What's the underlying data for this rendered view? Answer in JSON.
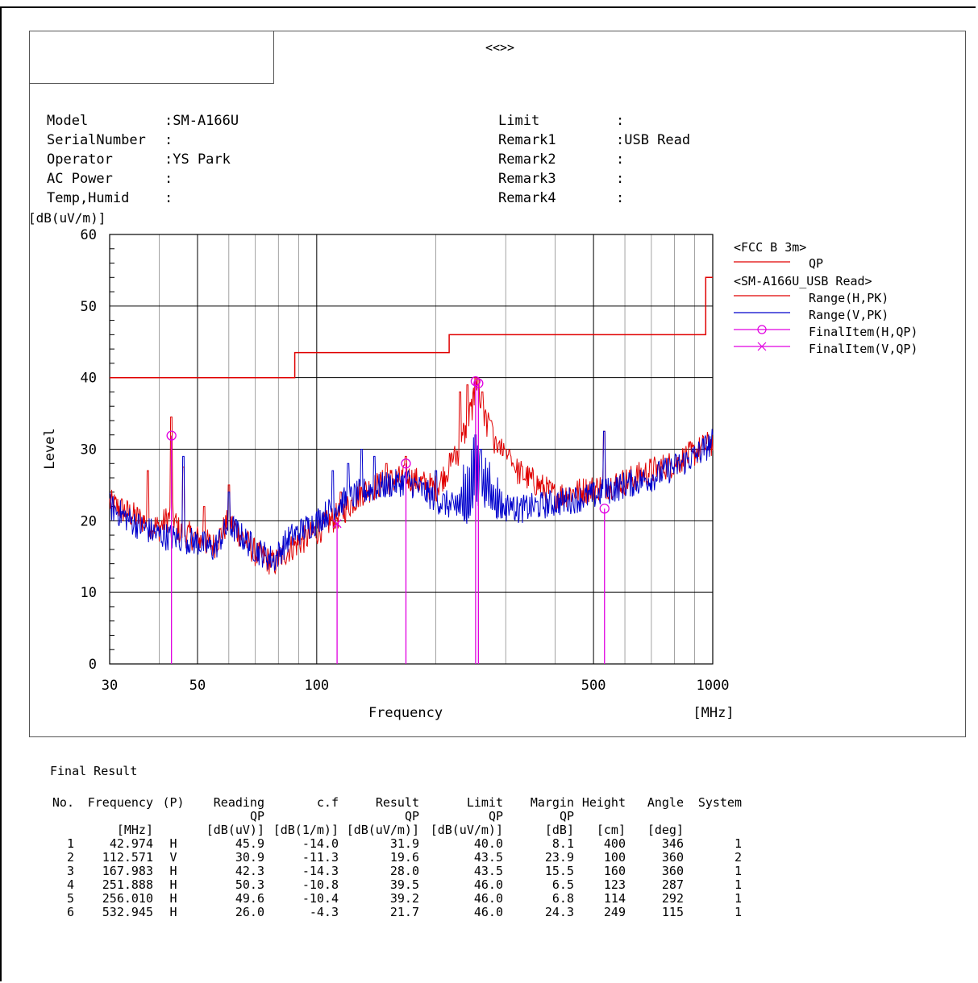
{
  "header": {
    "title": "<<>>",
    "left": [
      {
        "label": "Model",
        "value": ":SM-A166U"
      },
      {
        "label": "SerialNumber",
        "value": ":"
      },
      {
        "label": "Operator",
        "value": ":YS Park"
      },
      {
        "label": "AC Power",
        "value": ":"
      },
      {
        "label": "Temp,Humid",
        "value": ":"
      }
    ],
    "right": [
      {
        "label": "Limit",
        "value": ":"
      },
      {
        "label": "Remark1",
        "value": ":USB Read"
      },
      {
        "label": "Remark2",
        "value": ":"
      },
      {
        "label": "Remark3",
        "value": ":"
      },
      {
        "label": "Remark4",
        "value": ":"
      }
    ]
  },
  "chart_data": {
    "type": "line",
    "xscale": "log",
    "xlim": [
      30,
      1000
    ],
    "ylim": [
      0,
      60
    ],
    "grid": true,
    "xlabel": "Frequency",
    "xunit": "[MHz]",
    "ylabel": "Level",
    "yunit": "[dB(uV/m)]",
    "xticks": [
      30,
      50,
      100,
      500,
      1000
    ],
    "yticks": [
      0,
      10,
      20,
      30,
      40,
      50,
      60
    ],
    "legend": {
      "placement": "right",
      "groups": [
        {
          "title": "<FCC B 3m>",
          "entries": [
            {
              "label": "QP",
              "color": "#e00000",
              "marker": "line"
            }
          ]
        },
        {
          "title": "<SM-A166U_USB Read>",
          "entries": [
            {
              "label": "Range(H,PK)",
              "color": "#e00000",
              "marker": "line"
            },
            {
              "label": "Range(V,PK)",
              "color": "#0000cc",
              "marker": "line"
            },
            {
              "label": "FinalItem(H,QP)",
              "color": "#e000e0",
              "marker": "circle"
            },
            {
              "label": "FinalItem(V,QP)",
              "color": "#e000e0",
              "marker": "cross"
            }
          ]
        }
      ]
    },
    "limit_qp": [
      [
        30,
        40.0
      ],
      [
        88,
        40.0
      ],
      [
        88,
        43.5
      ],
      [
        216,
        43.5
      ],
      [
        216,
        46.0
      ],
      [
        960,
        46.0
      ],
      [
        960,
        54.0
      ],
      [
        1000,
        54.0
      ]
    ],
    "series": [
      {
        "name": "Range(H,PK)",
        "color": "#e00000",
        "envelope": [
          [
            30,
            22.5
          ],
          [
            35,
            20.5
          ],
          [
            40,
            19
          ],
          [
            43,
            21
          ],
          [
            45,
            18.5
          ],
          [
            50,
            17.5
          ],
          [
            55,
            16.5
          ],
          [
            60,
            20
          ],
          [
            70,
            15.5
          ],
          [
            78,
            14
          ],
          [
            85,
            16
          ],
          [
            100,
            18.5
          ],
          [
            115,
            21
          ],
          [
            130,
            24
          ],
          [
            150,
            25.5
          ],
          [
            170,
            26
          ],
          [
            200,
            24.5
          ],
          [
            230,
            30
          ],
          [
            250,
            37
          ],
          [
            260,
            36
          ],
          [
            280,
            31
          ],
          [
            320,
            27
          ],
          [
            400,
            23.5
          ],
          [
            500,
            24.5
          ],
          [
            600,
            25.5
          ],
          [
            700,
            27
          ],
          [
            800,
            28
          ],
          [
            900,
            29.5
          ],
          [
            1000,
            31
          ]
        ],
        "spikes": [
          [
            37.5,
            27
          ],
          [
            42.974,
            34.5
          ],
          [
            46,
            27.5
          ],
          [
            52,
            22
          ],
          [
            60,
            25
          ],
          [
            115,
            24
          ],
          [
            150,
            28
          ],
          [
            167.983,
            29
          ],
          [
            230,
            38
          ],
          [
            240,
            39
          ],
          [
            251.888,
            40
          ],
          [
            256.01,
            40
          ],
          [
            262,
            38
          ],
          [
            275,
            34
          ],
          [
            300,
            30
          ],
          [
            532.945,
            32.5
          ]
        ]
      },
      {
        "name": "Range(V,PK)",
        "color": "#0000cc",
        "envelope": [
          [
            30,
            22
          ],
          [
            35,
            19.5
          ],
          [
            40,
            18
          ],
          [
            45,
            17.5
          ],
          [
            50,
            17
          ],
          [
            55,
            16
          ],
          [
            60,
            19.5
          ],
          [
            70,
            16
          ],
          [
            78,
            14.5
          ],
          [
            85,
            17.5
          ],
          [
            100,
            20
          ],
          [
            115,
            22.5
          ],
          [
            130,
            24
          ],
          [
            150,
            25
          ],
          [
            170,
            25.5
          ],
          [
            200,
            23
          ],
          [
            240,
            21
          ],
          [
            260,
            24
          ],
          [
            280,
            22
          ],
          [
            320,
            21.5
          ],
          [
            400,
            22.5
          ],
          [
            500,
            23.5
          ],
          [
            600,
            25
          ],
          [
            700,
            26
          ],
          [
            800,
            27.5
          ],
          [
            900,
            29
          ],
          [
            1000,
            31
          ]
        ],
        "spikes": [
          [
            46,
            29
          ],
          [
            60,
            24
          ],
          [
            110,
            27
          ],
          [
            120,
            28
          ],
          [
            130,
            30
          ],
          [
            140,
            29
          ],
          [
            200,
            27
          ],
          [
            251.888,
            32
          ],
          [
            260,
            30
          ],
          [
            532.945,
            32.5
          ]
        ]
      }
    ],
    "markers": [
      {
        "x": 42.974,
        "y": 31.9,
        "marker": "circle"
      },
      {
        "x": 112.571,
        "y": 19.6,
        "marker": "cross"
      },
      {
        "x": 167.983,
        "y": 28.0,
        "marker": "circle"
      },
      {
        "x": 251.888,
        "y": 39.5,
        "marker": "circle"
      },
      {
        "x": 256.01,
        "y": 39.2,
        "marker": "circle"
      },
      {
        "x": 532.945,
        "y": 21.7,
        "marker": "circle"
      }
    ]
  },
  "results": {
    "title": "Final Result",
    "headers": [
      "No.",
      "Frequency",
      "(P)",
      "Reading",
      "c.f",
      "Result",
      "Limit",
      "Margin",
      "Height",
      "Angle",
      "System"
    ],
    "subheaders": [
      "",
      "",
      "",
      "QP",
      "",
      "QP",
      "QP",
      "QP",
      "",
      "",
      ""
    ],
    "units": [
      "",
      "[MHz]",
      "",
      "[dB(uV)]",
      "[dB(1/m)]",
      "[dB(uV/m)]",
      "[dB(uV/m)]",
      "[dB]",
      "[cm]",
      "[deg]",
      ""
    ],
    "rows": [
      [
        "1",
        "42.974",
        "H",
        "45.9",
        "-14.0",
        "31.9",
        "40.0",
        "8.1",
        "400",
        "346",
        "1"
      ],
      [
        "2",
        "112.571",
        "V",
        "30.9",
        "-11.3",
        "19.6",
        "43.5",
        "23.9",
        "100",
        "360",
        "2"
      ],
      [
        "3",
        "167.983",
        "H",
        "42.3",
        "-14.3",
        "28.0",
        "43.5",
        "15.5",
        "160",
        "360",
        "1"
      ],
      [
        "4",
        "251.888",
        "H",
        "50.3",
        "-10.8",
        "39.5",
        "46.0",
        "6.5",
        "123",
        "287",
        "1"
      ],
      [
        "5",
        "256.010",
        "H",
        "49.6",
        "-10.4",
        "39.2",
        "46.0",
        "6.8",
        "114",
        "292",
        "1"
      ],
      [
        "6",
        "532.945",
        "H",
        "26.0",
        "-4.3",
        "21.7",
        "46.0",
        "24.3",
        "249",
        "115",
        "1"
      ]
    ]
  }
}
